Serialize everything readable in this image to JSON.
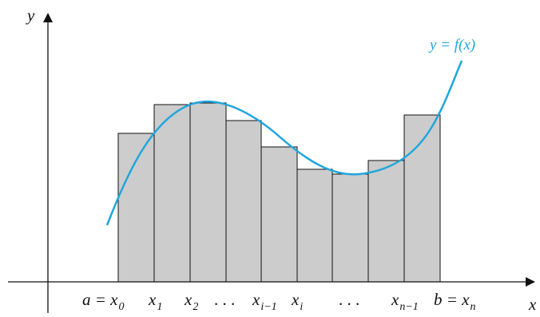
{
  "axes": {
    "x_label": "x",
    "y_label": "y"
  },
  "curve": {
    "label": "y = f(x)",
    "color": "#1fa6dc"
  },
  "bar_fill": "#cccccc",
  "bar_stroke": "#111111",
  "bars": [
    {
      "label_main": "a = x",
      "label_sub": "0"
    },
    {
      "label_main": "x",
      "label_sub": "1"
    },
    {
      "label_main": "x",
      "label_sub": "2"
    },
    {
      "label_main": ". . .",
      "label_sub": ""
    },
    {
      "label_main": "x",
      "label_sub": "i−1"
    },
    {
      "label_main": "x",
      "label_sub": "i"
    },
    {
      "label_main": ". . .",
      "label_sub": ""
    },
    {
      "label_main": "x",
      "label_sub": "n−1"
    },
    {
      "label_main": "b = x",
      "label_sub": "n"
    }
  ]
}
